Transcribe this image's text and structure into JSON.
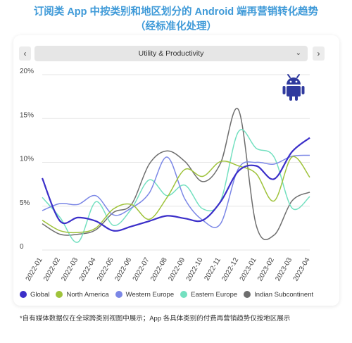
{
  "title_line1": "订阅类 App 中按类别和地区划分的 Android 端再营销转化趋势",
  "title_line2": "（经标准化处理）",
  "selector": {
    "prev_label": "‹",
    "next_label": "›",
    "value": "Utility & Productivity",
    "chevron": "⌄"
  },
  "platform_icon": "android-icon",
  "footnote": "*自有媒体数据仅在全球跨类别视图中展示；App 各具体类别的付费再营销趋势仅按地区展示",
  "chart_data": {
    "type": "line",
    "categories": [
      "2022-01",
      "2022-02",
      "2022-03",
      "2022-04",
      "2022-05",
      "2022-06",
      "2022-07",
      "2022-08",
      "2022-09",
      "2022-10",
      "2022-11",
      "2022-12",
      "2023-01",
      "2023-02",
      "2023-03",
      "2023-04"
    ],
    "y_ticks": [
      "0",
      "5%",
      "10%",
      "15%",
      "20%"
    ],
    "ylim": [
      0,
      20
    ],
    "grid": true,
    "legend_position": "bottom",
    "series": [
      {
        "name": "Global",
        "color": "#3b2fc9",
        "values": [
          8.2,
          3.3,
          3.7,
          3.3,
          2.2,
          2.7,
          3.3,
          3.9,
          3.6,
          3.4,
          5.5,
          9.0,
          9.6,
          8.1,
          11.2,
          12.8
        ]
      },
      {
        "name": "North America",
        "color": "#9fc33b",
        "values": [
          3.4,
          2.2,
          2.0,
          2.5,
          4.7,
          5.2,
          3.5,
          6.0,
          9.2,
          8.4,
          10.1,
          9.6,
          8.7,
          5.6,
          10.6,
          8.3
        ]
      },
      {
        "name": "Western Europe",
        "color": "#7b87e6",
        "values": [
          4.5,
          5.3,
          5.2,
          6.2,
          4.0,
          4.8,
          6.5,
          10.6,
          5.8,
          3.4,
          3.0,
          9.3,
          10.0,
          9.8,
          10.7,
          10.8
        ]
      },
      {
        "name": "Eastern Europe",
        "color": "#74e0c0",
        "values": [
          6.0,
          3.7,
          0.9,
          5.5,
          2.8,
          4.7,
          8.0,
          6.2,
          7.4,
          4.7,
          5.6,
          13.5,
          11.6,
          10.6,
          4.8,
          6.1
        ]
      },
      {
        "name": "Indian Subcontinent",
        "color": "#6e6e6e",
        "values": [
          3.0,
          1.8,
          1.8,
          2.3,
          4.3,
          5.2,
          9.8,
          11.3,
          10.1,
          7.8,
          9.9,
          16.0,
          2.8,
          1.7,
          5.6,
          6.6
        ]
      }
    ]
  }
}
